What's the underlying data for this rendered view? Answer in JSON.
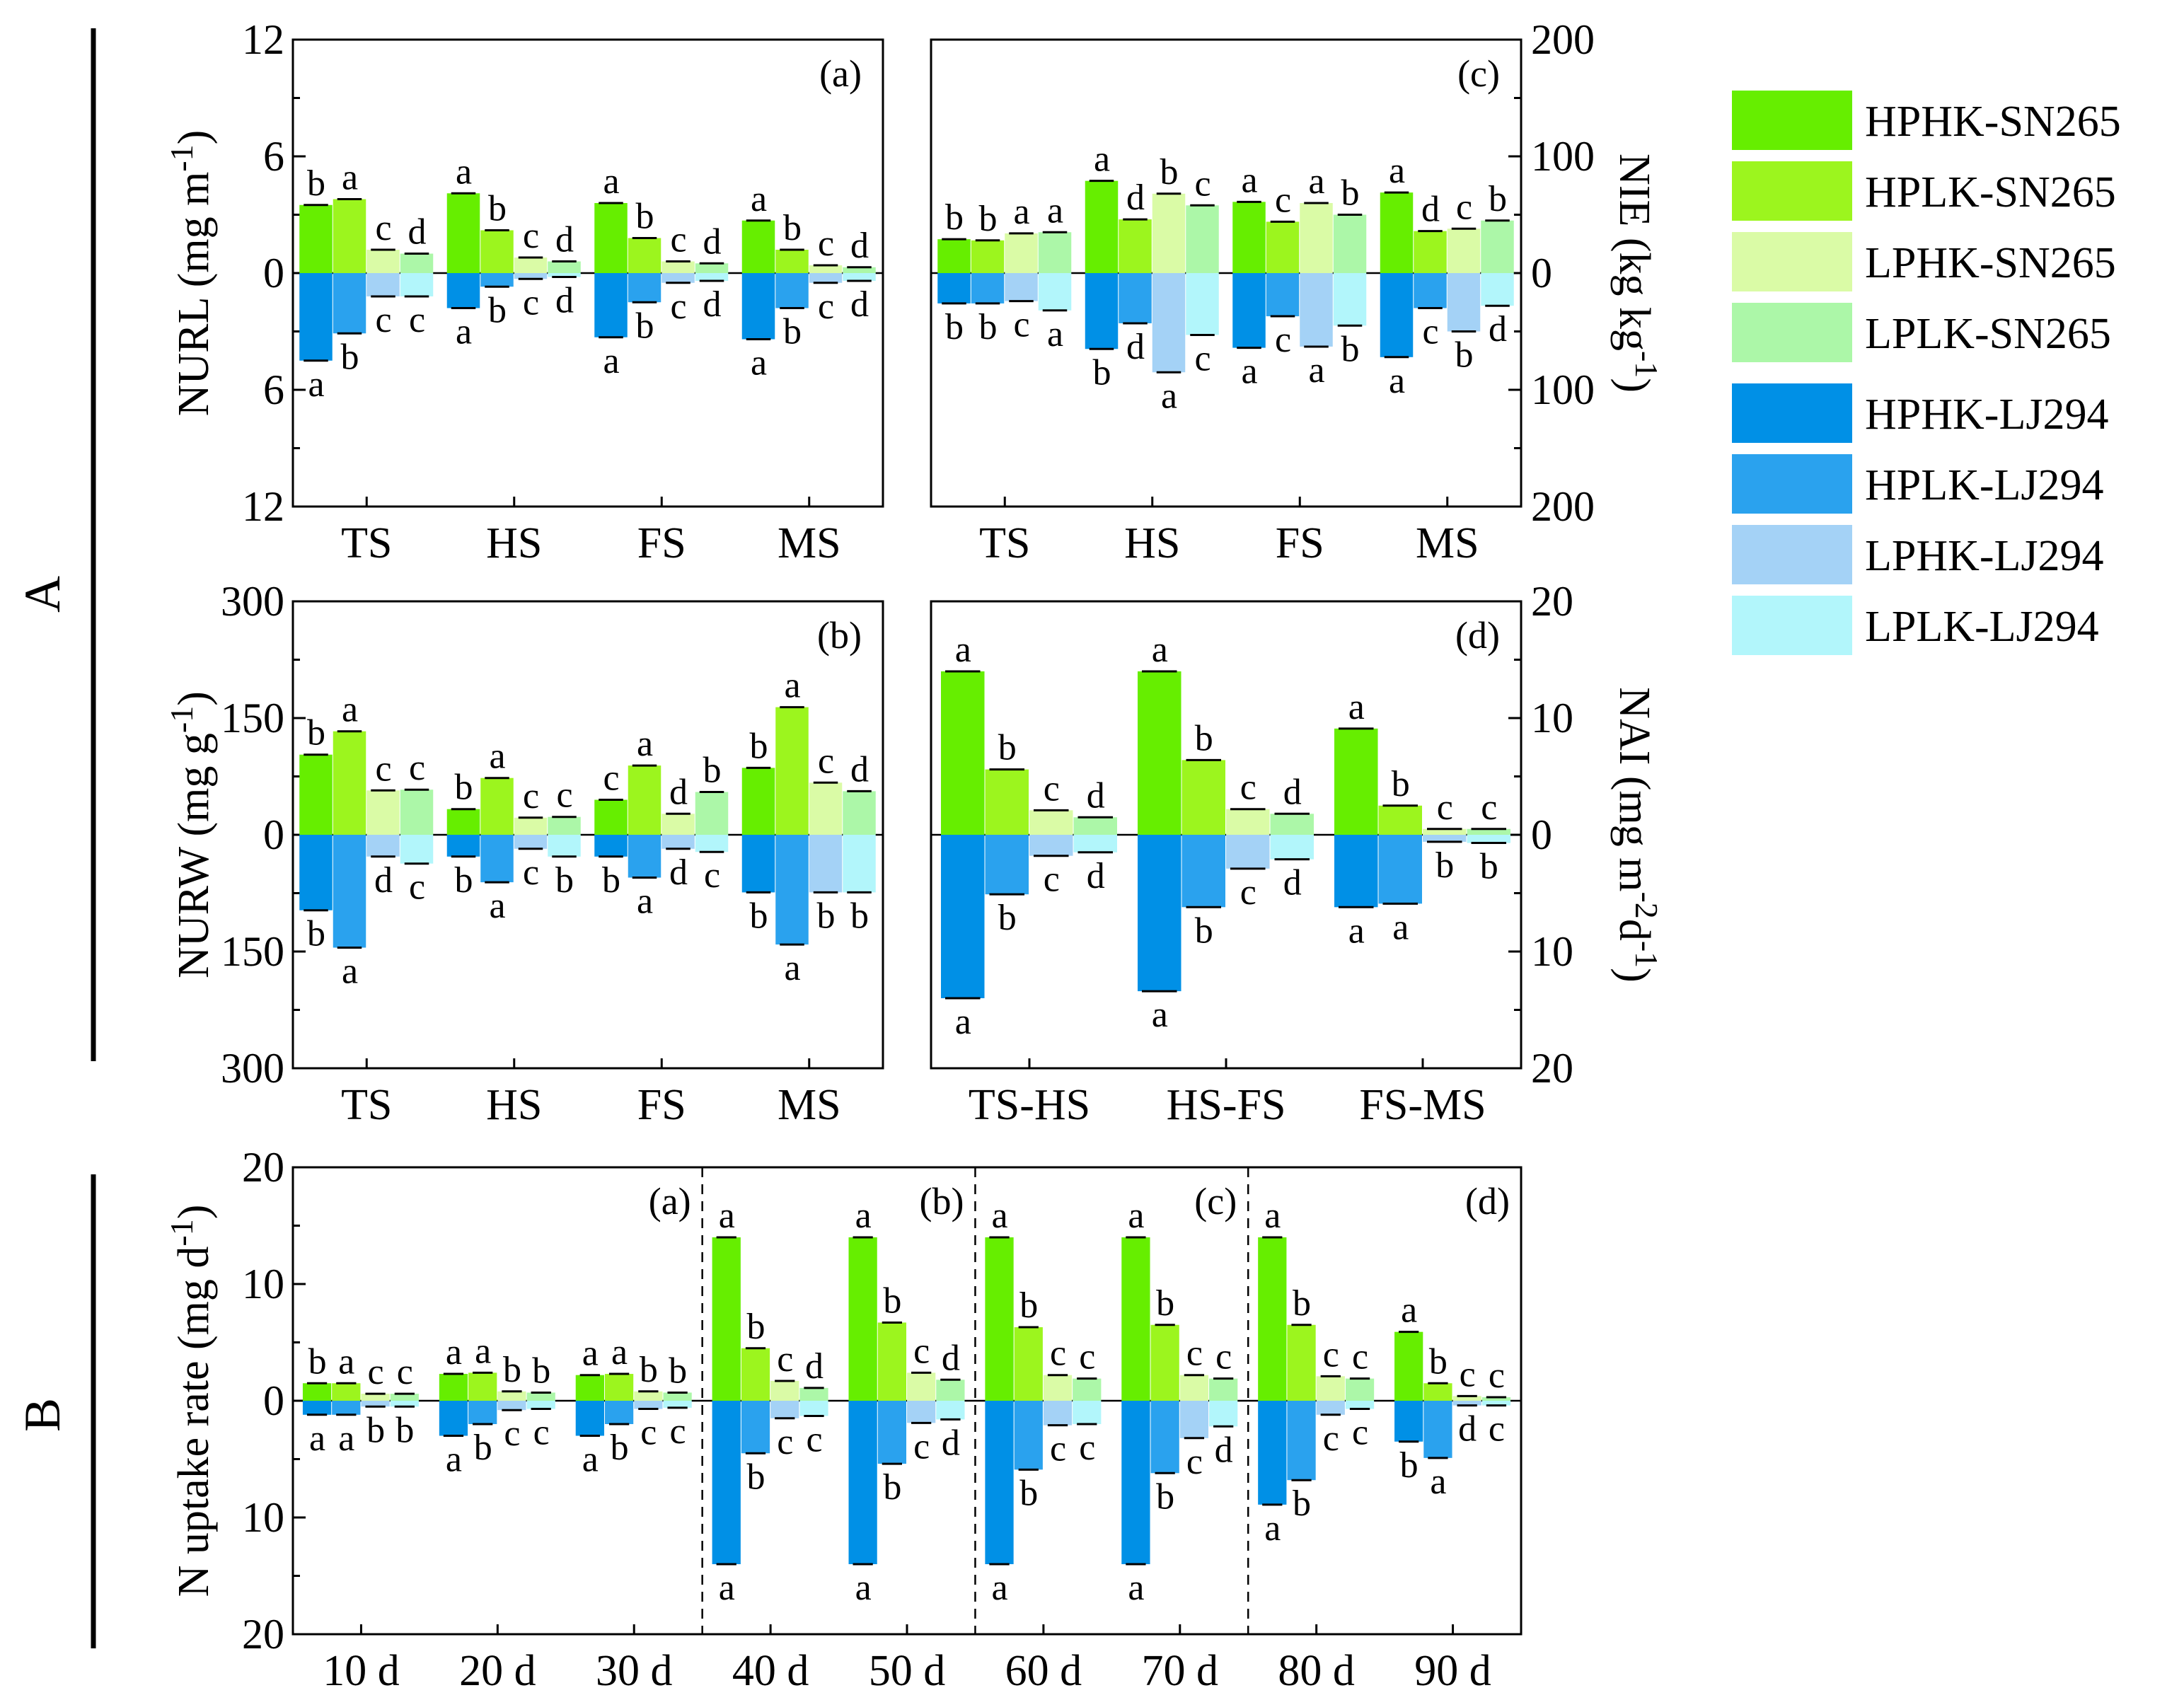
{
  "section_labels": [
    "A",
    "B"
  ],
  "legend": [
    {
      "name": "HPHK-SN265",
      "color": "#66ee00"
    },
    {
      "name": "HPLK-SN265",
      "color": "#9cf51e"
    },
    {
      "name": "LPHK-SN265",
      "color": "#dafba6"
    },
    {
      "name": "LPLK-SN265",
      "color": "#acf7a8"
    },
    {
      "name": "HPHK-LJ294",
      "color": "#0090e6"
    },
    {
      "name": "HPLK-LJ294",
      "color": "#2aa2ee"
    },
    {
      "name": "LPHK-LJ294",
      "color": "#a4d2f6"
    },
    {
      "name": "LPLK-LJ294",
      "color": "#b2f6fb"
    }
  ],
  "chart_data": [
    {
      "id": "Aa",
      "type": "bar",
      "panel_label": "(a)",
      "ylabel": "NURL (mg m",
      "ylabel_sup": "-1",
      "ylabel_end": ")",
      "ylabel_side": "left",
      "ylim": [
        -12,
        12
      ],
      "yticks": [
        "12",
        "6",
        "0",
        "6",
        "12"
      ],
      "categories": [
        "TS",
        "HS",
        "FS",
        "MS"
      ],
      "sn265": [
        [
          3.5,
          3.8,
          1.2,
          1.0
        ],
        [
          4.1,
          2.2,
          0.8,
          0.6
        ],
        [
          3.6,
          1.8,
          0.6,
          0.5
        ],
        [
          2.7,
          1.2,
          0.4,
          0.3
        ]
      ],
      "lj294": [
        [
          -4.5,
          -3.1,
          -1.2,
          -1.2
        ],
        [
          -1.8,
          -0.7,
          -0.3,
          -0.2
        ],
        [
          -3.3,
          -1.5,
          -0.5,
          -0.4
        ],
        [
          -3.4,
          -1.8,
          -0.5,
          -0.4
        ]
      ],
      "sn265_letters": [
        [
          "b",
          "a",
          "c",
          "d"
        ],
        [
          "a",
          "b",
          "c",
          "d"
        ],
        [
          "a",
          "b",
          "c",
          "d"
        ],
        [
          "a",
          "b",
          "c",
          "d"
        ]
      ],
      "lj294_letters": [
        [
          "a",
          "b",
          "c",
          "c"
        ],
        [
          "a",
          "b",
          "c",
          "d"
        ],
        [
          "a",
          "b",
          "c",
          "d"
        ],
        [
          "a",
          "b",
          "c",
          "d"
        ]
      ]
    },
    {
      "id": "Ac",
      "type": "bar",
      "panel_label": "(c)",
      "ylabel": "NIE (kg kg",
      "ylabel_sup": "-1",
      "ylabel_end": ")",
      "ylabel_side": "right",
      "ylim": [
        -200,
        200
      ],
      "yticks": [
        "200",
        "100",
        "0",
        "100",
        "200"
      ],
      "categories": [
        "TS",
        "HS",
        "FS",
        "MS"
      ],
      "sn265": [
        [
          29,
          28,
          34,
          35
        ],
        [
          79,
          46,
          68,
          58
        ],
        [
          61,
          44,
          60,
          50
        ],
        [
          69,
          36,
          38,
          45
        ]
      ],
      "lj294": [
        [
          -26,
          -26,
          -24,
          -32
        ],
        [
          -65,
          -43,
          -85,
          -53
        ],
        [
          -64,
          -37,
          -63,
          -45
        ],
        [
          -72,
          -30,
          -50,
          -28
        ]
      ],
      "sn265_letters": [
        [
          "b",
          "b",
          "a",
          "a"
        ],
        [
          "a",
          "d",
          "b",
          "c"
        ],
        [
          "a",
          "c",
          "a",
          "b"
        ],
        [
          "a",
          "d",
          "c",
          "b"
        ]
      ],
      "lj294_letters": [
        [
          "b",
          "b",
          "c",
          "a"
        ],
        [
          "b",
          "d",
          "a",
          "c"
        ],
        [
          "a",
          "c",
          "a",
          "b"
        ],
        [
          "a",
          "c",
          "b",
          "d"
        ]
      ]
    },
    {
      "id": "Ab",
      "type": "bar",
      "panel_label": "(b)",
      "ylabel": "NURW (mg g",
      "ylabel_sup": "-1",
      "ylabel_end": ")",
      "ylabel_side": "left",
      "ylim": [
        -300,
        300
      ],
      "yticks": [
        "300",
        "150",
        "0",
        "150",
        "300"
      ],
      "categories": [
        "TS",
        "HS",
        "FS",
        "MS"
      ],
      "sn265": [
        [
          103,
          133,
          57,
          58
        ],
        [
          33,
          73,
          22,
          23
        ],
        [
          45,
          89,
          27,
          55
        ],
        [
          86,
          164,
          67,
          56
        ]
      ],
      "lj294": [
        [
          -97,
          -145,
          -28,
          -37
        ],
        [
          -28,
          -61,
          -18,
          -28
        ],
        [
          -28,
          -55,
          -18,
          -22
        ],
        [
          -74,
          -141,
          -74,
          -74
        ]
      ],
      "sn265_letters": [
        [
          "b",
          "a",
          "c",
          "c"
        ],
        [
          "b",
          "a",
          "c",
          "c"
        ],
        [
          "c",
          "a",
          "d",
          "b"
        ],
        [
          "b",
          "a",
          "c",
          "d"
        ]
      ],
      "lj294_letters": [
        [
          "b",
          "a",
          "d",
          "c"
        ],
        [
          "b",
          "a",
          "c",
          "b"
        ],
        [
          "b",
          "a",
          "d",
          "c"
        ],
        [
          "b",
          "a",
          "b",
          "b"
        ]
      ]
    },
    {
      "id": "Ad",
      "type": "bar",
      "panel_label": "(d)",
      "ylabel": "NAI (mg m",
      "ylabel_sup": "-2",
      "ylabel_mid": "d",
      "ylabel_sup2": "-1",
      "ylabel_end": ")",
      "ylabel_side": "right",
      "ylim": [
        -20,
        20
      ],
      "yticks": [
        "20",
        "10",
        "0",
        "10",
        "20"
      ],
      "categories": [
        "TS-HS",
        "HS-FS",
        "FS-MS"
      ],
      "sn265": [
        [
          14.0,
          5.6,
          2.1,
          1.5
        ],
        [
          14.0,
          6.4,
          2.2,
          1.8
        ],
        [
          9.1,
          2.5,
          0.5,
          0.5
        ]
      ],
      "lj294": [
        [
          -14.0,
          -5.1,
          -1.8,
          -1.5
        ],
        [
          -13.4,
          -6.2,
          -2.9,
          -2.1
        ],
        [
          -6.2,
          -5.9,
          -0.6,
          -0.7
        ]
      ],
      "sn265_letters": [
        [
          "a",
          "b",
          "c",
          "d"
        ],
        [
          "a",
          "b",
          "c",
          "d"
        ],
        [
          "a",
          "b",
          "c",
          "c"
        ]
      ],
      "lj294_letters": [
        [
          "a",
          "b",
          "c",
          "d"
        ],
        [
          "a",
          "b",
          "c",
          "d"
        ],
        [
          "a",
          "a",
          "b",
          "b"
        ]
      ]
    },
    {
      "id": "B",
      "type": "bar",
      "ylabel": "N uptake rate (mg d",
      "ylabel_sup": "-1",
      "ylabel_end": ")",
      "ylabel_side": "left",
      "ylim": [
        -20,
        20
      ],
      "yticks": [
        "20",
        "10",
        "0",
        "10",
        "20"
      ],
      "categories": [
        "10 d",
        "20 d",
        "30 d",
        "40 d",
        "50 d",
        "60 d",
        "70 d",
        "80 d",
        "90 d"
      ],
      "panel_labels": [
        {
          "text": "(a)",
          "after_category": 2
        },
        {
          "text": "(b)",
          "after_category": 4
        },
        {
          "text": "(c)",
          "after_category": 6
        },
        {
          "text": "(d)",
          "after_category": 8
        }
      ],
      "separators_after": [
        2,
        4,
        6
      ],
      "sn265": [
        [
          1.5,
          1.5,
          0.6,
          0.6
        ],
        [
          2.3,
          2.4,
          0.8,
          0.7
        ],
        [
          2.2,
          2.3,
          0.8,
          0.7
        ],
        [
          14.0,
          4.5,
          1.7,
          1.1
        ],
        [
          14.0,
          6.7,
          2.4,
          1.8
        ],
        [
          14.0,
          6.3,
          2.2,
          1.9
        ],
        [
          14.0,
          6.5,
          2.2,
          1.9
        ],
        [
          14.0,
          6.5,
          2.1,
          1.9
        ],
        [
          5.9,
          1.5,
          0.4,
          0.3
        ]
      ],
      "lj294": [
        [
          -1.2,
          -1.2,
          -0.5,
          -0.5
        ],
        [
          -3.0,
          -2.0,
          -0.8,
          -0.7
        ],
        [
          -3.0,
          -2.0,
          -0.7,
          -0.6
        ],
        [
          -14.0,
          -4.5,
          -1.5,
          -1.3
        ],
        [
          -14.0,
          -5.4,
          -1.9,
          -1.6
        ],
        [
          -14.0,
          -5.9,
          -2.1,
          -2.0
        ],
        [
          -14.0,
          -6.2,
          -3.2,
          -2.2
        ],
        [
          -8.9,
          -6.8,
          -1.2,
          -0.7
        ],
        [
          -3.5,
          -4.9,
          -0.4,
          -0.4
        ]
      ],
      "sn265_letters": [
        [
          "b",
          "a",
          "c",
          "c"
        ],
        [
          "a",
          "a",
          "b",
          "b"
        ],
        [
          "a",
          "a",
          "b",
          "b"
        ],
        [
          "a",
          "b",
          "c",
          "d"
        ],
        [
          "a",
          "b",
          "c",
          "d"
        ],
        [
          "a",
          "b",
          "c",
          "c"
        ],
        [
          "a",
          "b",
          "c",
          "c"
        ],
        [
          "a",
          "b",
          "c",
          "c"
        ],
        [
          "a",
          "b",
          "c",
          "c"
        ]
      ],
      "lj294_letters": [
        [
          "a",
          "a",
          "b",
          "b"
        ],
        [
          "a",
          "b",
          "c",
          "c"
        ],
        [
          "a",
          "b",
          "c",
          "c"
        ],
        [
          "a",
          "b",
          "c",
          "c"
        ],
        [
          "a",
          "b",
          "c",
          "d"
        ],
        [
          "a",
          "b",
          "c",
          "c"
        ],
        [
          "a",
          "b",
          "c",
          "d"
        ],
        [
          "a",
          "b",
          "c",
          "c"
        ],
        [
          "b",
          "a",
          "d",
          "c"
        ]
      ]
    }
  ]
}
